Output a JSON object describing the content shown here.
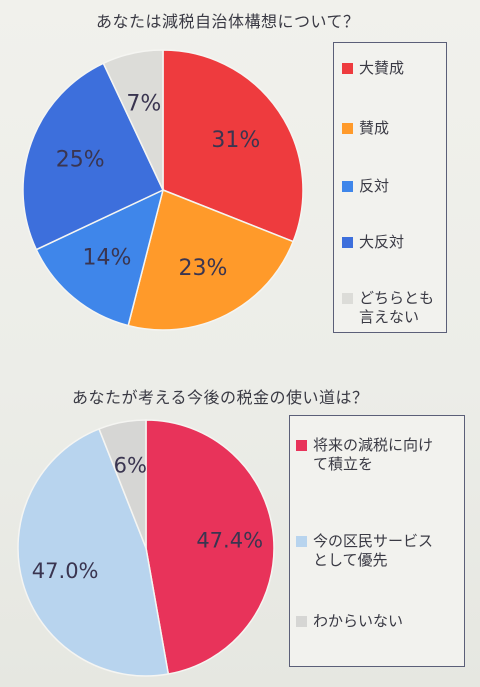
{
  "chart_data": [
    {
      "type": "pie",
      "title": "あなたは減税自治体構想について？",
      "legend_position": "right",
      "slices": [
        {
          "label": "大賛成",
          "value": 31,
          "display": "31%",
          "color": "#ee3b3e"
        },
        {
          "label": "賛成",
          "value": 23,
          "display": "23%",
          "color": "#ff9a2a"
        },
        {
          "label": "反対",
          "value": 14,
          "display": "14%",
          "color": "#3f86ea"
        },
        {
          "label": "大反対",
          "value": 25,
          "display": "25%",
          "color": "#3d6fdc"
        },
        {
          "label": "どちらとも\n言えない",
          "value": 7,
          "display": "7%",
          "color": "#dcdcd8"
        }
      ]
    },
    {
      "type": "pie",
      "title": "あなたが考える今後の税金の使い道は？",
      "legend_position": "right",
      "slices": [
        {
          "label": "将来の減税に向け\nて積立を",
          "value": 47.4,
          "display": "47.4%",
          "color": "#e8335a"
        },
        {
          "label": "今の区民サービス\nとして優先",
          "value": 47.0,
          "display": "47.0%",
          "color": "#b8d4ee"
        },
        {
          "label": "わからいない",
          "value": 6,
          "display": "6%",
          "color": "#d6d6d4"
        }
      ]
    }
  ]
}
